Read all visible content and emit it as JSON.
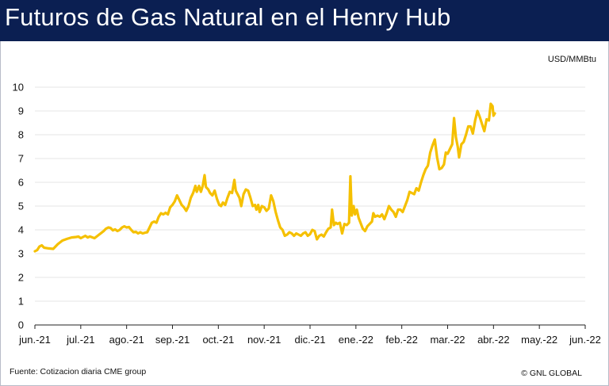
{
  "header": {
    "title": "Futuros de Gas Natural en el Henry Hub"
  },
  "footer": {
    "source": "Fuente: Cotizacion diaria CME group",
    "copyright": "© GNL GLOBAL"
  },
  "colors": {
    "header_bg": "#0b1f52",
    "line": "#f5c000",
    "grid": "#e6e6e6"
  },
  "chart_data": {
    "type": "line",
    "title": "Futuros de Gas Natural en el Henry Hub",
    "xlabel": "",
    "ylabel": "USD/MMBtu",
    "ylim": [
      0,
      10
    ],
    "yticks": [
      "0",
      "1",
      "2",
      "3",
      "4",
      "5",
      "6",
      "7",
      "8",
      "9",
      "10"
    ],
    "grid": true,
    "legend": "none",
    "x_ticks": [
      "jun.-21",
      "jul.-21",
      "ago.-21",
      "sep.-21",
      "oct.-21",
      "nov.-21",
      "dic.-21",
      "ene.-22",
      "feb.-22",
      "mar.-22",
      "abr.-22",
      "may.-22",
      "jun.-22"
    ],
    "series": [
      {
        "values": [
          [
            0.0,
            3.1
          ],
          [
            0.05,
            3.15
          ],
          [
            0.1,
            3.3
          ],
          [
            0.15,
            3.35
          ],
          [
            0.2,
            3.25
          ],
          [
            0.3,
            3.22
          ],
          [
            0.4,
            3.2
          ],
          [
            0.5,
            3.4
          ],
          [
            0.6,
            3.55
          ],
          [
            0.7,
            3.62
          ],
          [
            0.8,
            3.68
          ],
          [
            0.9,
            3.7
          ],
          [
            0.95,
            3.72
          ],
          [
            1.0,
            3.65
          ],
          [
            1.05,
            3.7
          ],
          [
            1.1,
            3.75
          ],
          [
            1.15,
            3.68
          ],
          [
            1.2,
            3.72
          ],
          [
            1.3,
            3.65
          ],
          [
            1.4,
            3.8
          ],
          [
            1.5,
            3.95
          ],
          [
            1.55,
            4.05
          ],
          [
            1.6,
            4.1
          ],
          [
            1.65,
            4.08
          ],
          [
            1.7,
            3.98
          ],
          [
            1.75,
            4.02
          ],
          [
            1.8,
            3.95
          ],
          [
            1.85,
            4.0
          ],
          [
            1.9,
            4.1
          ],
          [
            1.95,
            4.15
          ],
          [
            2.0,
            4.1
          ],
          [
            2.05,
            4.12
          ],
          [
            2.1,
            4.0
          ],
          [
            2.15,
            3.9
          ],
          [
            2.2,
            3.92
          ],
          [
            2.25,
            3.85
          ],
          [
            2.3,
            3.9
          ],
          [
            2.35,
            3.85
          ],
          [
            2.4,
            3.88
          ],
          [
            2.45,
            3.9
          ],
          [
            2.5,
            4.1
          ],
          [
            2.55,
            4.3
          ],
          [
            2.6,
            4.35
          ],
          [
            2.65,
            4.3
          ],
          [
            2.7,
            4.55
          ],
          [
            2.75,
            4.7
          ],
          [
            2.8,
            4.65
          ],
          [
            2.85,
            4.72
          ],
          [
            2.9,
            4.65
          ],
          [
            2.95,
            4.95
          ],
          [
            3.0,
            5.05
          ],
          [
            3.05,
            5.2
          ],
          [
            3.1,
            5.45
          ],
          [
            3.15,
            5.25
          ],
          [
            3.2,
            5.05
          ],
          [
            3.25,
            4.95
          ],
          [
            3.3,
            4.8
          ],
          [
            3.35,
            5.0
          ],
          [
            3.4,
            5.35
          ],
          [
            3.45,
            5.55
          ],
          [
            3.5,
            5.85
          ],
          [
            3.53,
            5.6
          ],
          [
            3.58,
            5.85
          ],
          [
            3.62,
            5.6
          ],
          [
            3.66,
            5.85
          ],
          [
            3.7,
            6.3
          ],
          [
            3.73,
            5.8
          ],
          [
            3.78,
            5.7
          ],
          [
            3.82,
            5.55
          ],
          [
            3.87,
            5.45
          ],
          [
            3.92,
            5.65
          ],
          [
            3.97,
            5.3
          ],
          [
            4.02,
            5.05
          ],
          [
            4.06,
            5.0
          ],
          [
            4.1,
            5.15
          ],
          [
            4.15,
            5.05
          ],
          [
            4.2,
            5.35
          ],
          [
            4.25,
            5.6
          ],
          [
            4.3,
            5.55
          ],
          [
            4.35,
            6.1
          ],
          [
            4.38,
            5.65
          ],
          [
            4.42,
            5.5
          ],
          [
            4.46,
            5.35
          ],
          [
            4.5,
            5.0
          ],
          [
            4.55,
            5.5
          ],
          [
            4.6,
            5.7
          ],
          [
            4.65,
            5.65
          ],
          [
            4.7,
            5.35
          ],
          [
            4.75,
            5.0
          ],
          [
            4.8,
            5.05
          ],
          [
            4.83,
            4.85
          ],
          [
            4.87,
            5.05
          ],
          [
            4.9,
            4.75
          ],
          [
            4.95,
            5.0
          ],
          [
            5.0,
            4.95
          ],
          [
            5.05,
            4.8
          ],
          [
            5.1,
            4.9
          ],
          [
            5.15,
            5.45
          ],
          [
            5.2,
            5.2
          ],
          [
            5.25,
            4.75
          ],
          [
            5.3,
            4.4
          ],
          [
            5.35,
            4.1
          ],
          [
            5.4,
            4.0
          ],
          [
            5.45,
            3.75
          ],
          [
            5.5,
            3.8
          ],
          [
            5.55,
            3.9
          ],
          [
            5.6,
            3.85
          ],
          [
            5.65,
            3.75
          ],
          [
            5.7,
            3.85
          ],
          [
            5.75,
            3.8
          ],
          [
            5.8,
            3.75
          ],
          [
            5.85,
            3.85
          ],
          [
            5.9,
            3.9
          ],
          [
            5.95,
            3.75
          ],
          [
            6.0,
            3.82
          ],
          [
            6.05,
            4.0
          ],
          [
            6.1,
            3.95
          ],
          [
            6.15,
            3.6
          ],
          [
            6.2,
            3.75
          ],
          [
            6.25,
            3.8
          ],
          [
            6.3,
            3.72
          ],
          [
            6.35,
            3.9
          ],
          [
            6.4,
            4.05
          ],
          [
            6.45,
            4.1
          ],
          [
            6.48,
            4.85
          ],
          [
            6.52,
            4.2
          ],
          [
            6.56,
            4.3
          ],
          [
            6.6,
            4.25
          ],
          [
            6.65,
            4.3
          ],
          [
            6.7,
            3.85
          ],
          [
            6.75,
            4.25
          ],
          [
            6.8,
            4.2
          ],
          [
            6.85,
            4.3
          ],
          [
            6.88,
            6.25
          ],
          [
            6.91,
            4.6
          ],
          [
            6.95,
            5.0
          ],
          [
            6.98,
            4.65
          ],
          [
            7.02,
            4.85
          ],
          [
            7.06,
            4.5
          ],
          [
            7.1,
            4.3
          ],
          [
            7.15,
            4.05
          ],
          [
            7.2,
            3.95
          ],
          [
            7.25,
            4.15
          ],
          [
            7.3,
            4.25
          ],
          [
            7.35,
            4.35
          ],
          [
            7.38,
            4.7
          ],
          [
            7.42,
            4.55
          ],
          [
            7.47,
            4.6
          ],
          [
            7.52,
            4.55
          ],
          [
            7.57,
            4.65
          ],
          [
            7.62,
            4.45
          ],
          [
            7.67,
            4.7
          ],
          [
            7.72,
            5.0
          ],
          [
            7.77,
            4.85
          ],
          [
            7.82,
            4.75
          ],
          [
            7.87,
            4.55
          ],
          [
            7.92,
            4.85
          ],
          [
            7.97,
            4.85
          ],
          [
            8.02,
            4.75
          ],
          [
            8.07,
            5.0
          ],
          [
            8.12,
            5.25
          ],
          [
            8.17,
            5.6
          ],
          [
            8.22,
            5.55
          ],
          [
            8.27,
            5.5
          ],
          [
            8.32,
            5.75
          ],
          [
            8.37,
            5.65
          ],
          [
            8.42,
            6.0
          ],
          [
            8.47,
            6.3
          ],
          [
            8.52,
            6.55
          ],
          [
            8.57,
            6.7
          ],
          [
            8.62,
            7.25
          ],
          [
            8.67,
            7.55
          ],
          [
            8.72,
            7.8
          ],
          [
            8.77,
            7.05
          ],
          [
            8.82,
            6.55
          ],
          [
            8.87,
            6.6
          ],
          [
            8.92,
            6.75
          ],
          [
            8.96,
            7.25
          ],
          [
            9.0,
            7.2
          ],
          [
            9.05,
            7.4
          ],
          [
            9.1,
            7.6
          ],
          [
            9.14,
            8.7
          ],
          [
            9.18,
            7.9
          ],
          [
            9.22,
            7.5
          ],
          [
            9.25,
            7.05
          ],
          [
            9.3,
            7.6
          ],
          [
            9.35,
            7.7
          ],
          [
            9.4,
            8.0
          ],
          [
            9.45,
            8.35
          ],
          [
            9.5,
            8.35
          ],
          [
            9.55,
            8.05
          ],
          [
            9.6,
            8.6
          ],
          [
            9.65,
            9.0
          ],
          [
            9.7,
            8.75
          ],
          [
            9.75,
            8.45
          ],
          [
            9.8,
            8.15
          ],
          [
            9.85,
            8.65
          ],
          [
            9.9,
            8.6
          ],
          [
            9.94,
            9.3
          ],
          [
            9.98,
            9.2
          ],
          [
            10.0,
            8.8
          ],
          [
            10.03,
            8.9
          ]
        ]
      }
    ]
  }
}
